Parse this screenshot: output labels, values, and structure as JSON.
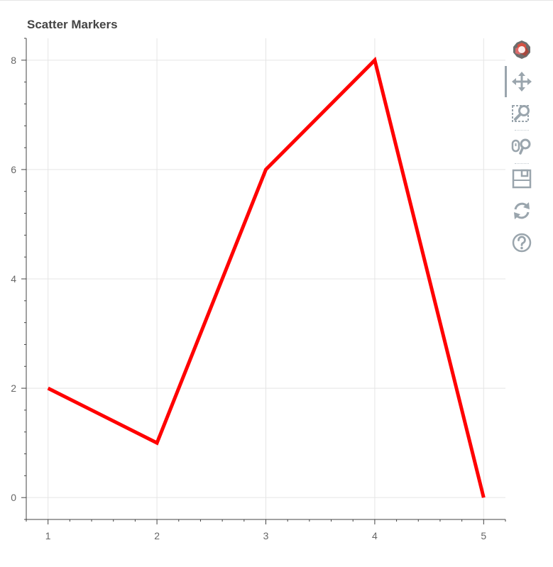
{
  "chart_data": {
    "type": "line",
    "title": "Scatter Markers",
    "xlabel": "",
    "ylabel": "",
    "x": [
      1,
      2,
      3,
      4,
      5
    ],
    "series": [
      {
        "values": [
          2,
          1,
          6,
          8,
          0
        ],
        "color": "#ff0000"
      }
    ],
    "xlim": [
      0.8,
      5.2
    ],
    "ylim": [
      -0.4,
      8.4
    ],
    "x_ticks": [
      1,
      2,
      3,
      4,
      5
    ],
    "y_ticks": [
      0,
      2,
      4,
      6,
      8
    ],
    "grid": true
  },
  "colors": {
    "line": "#ff0000",
    "grid": "#e5e5e5",
    "axis": "#444444",
    "tick_label": "#666666",
    "tool_icon": "#9aa5ad"
  },
  "toolbar": {
    "tools": [
      {
        "name": "bokeh-logo-icon",
        "label": "Bokeh"
      },
      {
        "name": "pan-tool-icon",
        "label": "Pan",
        "active": true
      },
      {
        "name": "box-zoom-tool-icon",
        "label": "Box Zoom"
      },
      {
        "name": "wheel-zoom-tool-icon",
        "label": "Wheel Zoom"
      },
      {
        "name": "save-tool-icon",
        "label": "Save"
      },
      {
        "name": "reset-tool-icon",
        "label": "Reset"
      },
      {
        "name": "help-tool-icon",
        "label": "Help"
      }
    ]
  }
}
